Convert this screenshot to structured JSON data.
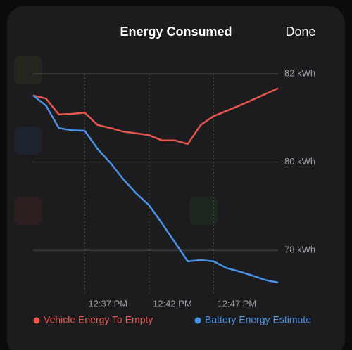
{
  "header": {
    "title": "Energy Consumed",
    "done": "Done"
  },
  "chart_data": {
    "type": "line",
    "x": [
      "12:33 PM",
      "12:34 PM",
      "12:35 PM",
      "12:36 PM",
      "12:37 PM",
      "12:38 PM",
      "12:39 PM",
      "12:40 PM",
      "12:41 PM",
      "12:42 PM",
      "12:43 PM",
      "12:44 PM",
      "12:45 PM",
      "12:46 PM",
      "12:47 PM",
      "12:48 PM",
      "12:49 PM",
      "12:50 PM",
      "12:51 PM",
      "12:52 PM"
    ],
    "series": [
      {
        "name": "Vehicle Energy To Empty",
        "color": "#e5564e",
        "values": [
          81.51,
          81.44,
          81.08,
          81.09,
          81.12,
          80.84,
          80.77,
          80.69,
          80.65,
          80.61,
          80.49,
          80.49,
          80.41,
          80.84,
          81.04,
          81.16,
          81.28,
          81.41,
          81.54,
          81.67
        ]
      },
      {
        "name": "Battery Energy Estimate",
        "color": "#4b93e6",
        "values": [
          81.51,
          81.28,
          80.77,
          80.72,
          80.71,
          80.3,
          79.98,
          79.61,
          79.29,
          79.02,
          78.61,
          78.18,
          77.75,
          77.78,
          77.75,
          77.6,
          77.52,
          77.43,
          77.33,
          77.27
        ]
      }
    ],
    "xlim": [
      "12:33 PM",
      "12:52 PM"
    ],
    "xticks": [
      "12:37 PM",
      "12:42 PM",
      "12:47 PM"
    ],
    "ylim": [
      77,
      82
    ],
    "yticks": [
      {
        "value": 78,
        "label": "78 kWh"
      },
      {
        "value": 80,
        "label": "80 kWh"
      },
      {
        "value": 82,
        "label": "82 kWh"
      }
    ],
    "grid": true
  }
}
